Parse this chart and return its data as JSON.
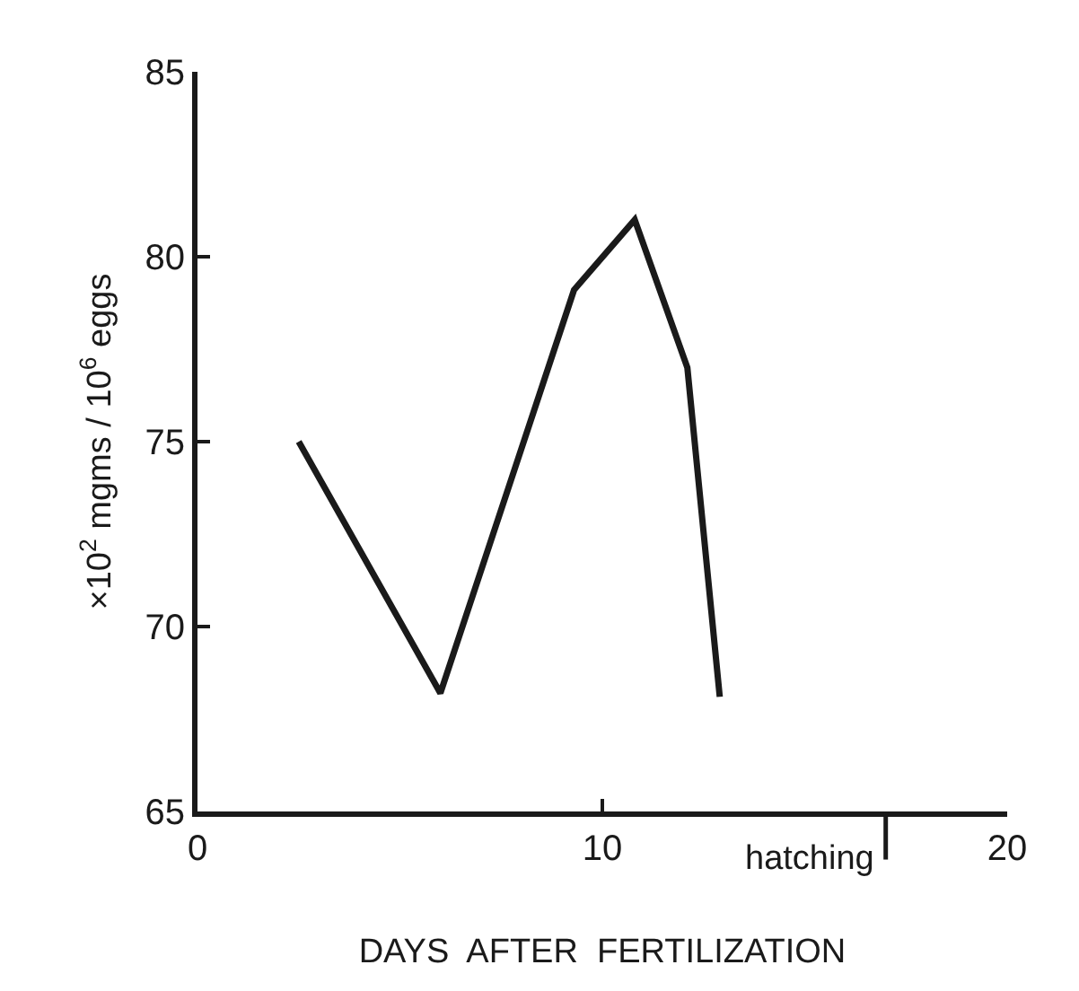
{
  "chart_data": {
    "type": "line",
    "xlabel": "DAYS  AFTER  FERTILIZATION",
    "ylabel": "×10$^{2}$ mgms / 10$^{6}$ eggs",
    "x": [
      2.5,
      6,
      9.3,
      10.8,
      12.1,
      12.9
    ],
    "series": [
      {
        "color": "#1a1a1a",
        "values": [
          75.0,
          68.2,
          79.1,
          81.0,
          77.0,
          68.1
        ]
      }
    ],
    "xlim": [
      0,
      20
    ],
    "xticks": [
      0,
      10,
      20
    ],
    "ylim": [
      65,
      85
    ],
    "yticks": [
      65,
      70,
      75,
      80,
      85
    ],
    "marker": "none",
    "line_style": "solid",
    "ref_lines": [
      {
        "axis": "x",
        "value": 17,
        "label": "hatching"
      }
    ]
  }
}
